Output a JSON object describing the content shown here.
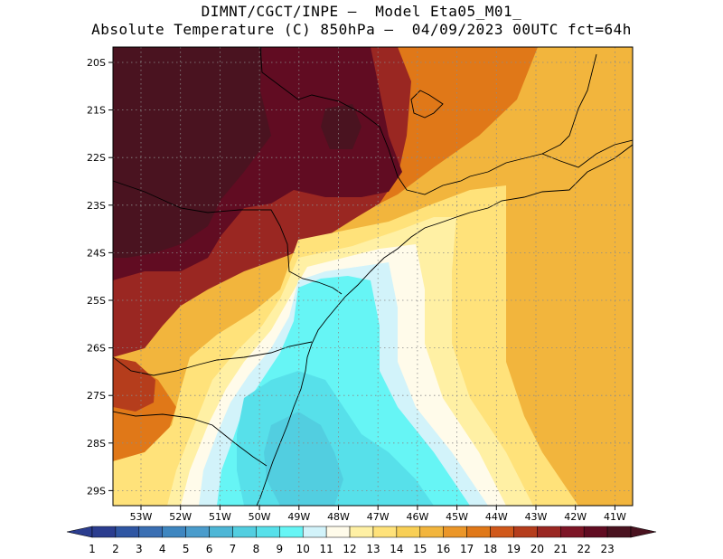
{
  "header": {
    "line1": "DIMNT/CGCT/INPE —  Model Eta05_M01_",
    "line2": "Absolute Temperature (C) 850hPa —  04/09/2023 00UTC fct=64h"
  },
  "axes": {
    "lat_labels": [
      "20S",
      "21S",
      "22S",
      "23S",
      "24S",
      "25S",
      "26S",
      "27S",
      "28S",
      "29S"
    ],
    "lon_labels": [
      "53W",
      "52W",
      "51W",
      "50W",
      "49W",
      "48W",
      "47W",
      "46W",
      "45W",
      "44W",
      "43W",
      "42W",
      "41W"
    ]
  },
  "colorbar": {
    "labels": [
      "1",
      "2",
      "3",
      "4",
      "5",
      "6",
      "7",
      "8",
      "9",
      "10",
      "11",
      "12",
      "13",
      "14",
      "15",
      "16",
      "17",
      "18",
      "19",
      "20",
      "21",
      "22",
      "23"
    ],
    "colors": [
      "#2b3d8f",
      "#2f56a3",
      "#3a6fb3",
      "#3e86c0",
      "#4a9ccc",
      "#4db6d6",
      "#52cee0",
      "#57e0ea",
      "#66f5f5",
      "#d2f3fa",
      "#fffbea",
      "#fff0a4",
      "#ffe27a",
      "#f8cf55",
      "#f2b53d",
      "#eb9628",
      "#e07818",
      "#d0581a",
      "#b53d1c",
      "#9a2722",
      "#7d1526",
      "#610c22",
      "#4a1320"
    ]
  },
  "map": {
    "background_color": "#f2b53d",
    "regions": [
      {
        "name": "warm-corridor",
        "color": "#e07818"
      },
      {
        "name": "north-hot",
        "color": "#9a2722"
      },
      {
        "name": "north-west-hotter",
        "color": "#610c22"
      },
      {
        "name": "north-west-hottest",
        "color": "#4a1320"
      },
      {
        "name": "south-west-orange",
        "color": "#e07818"
      },
      {
        "name": "south-west-red",
        "color": "#b53d1c"
      },
      {
        "name": "coastal-yellow",
        "color": "#ffe27a"
      },
      {
        "name": "pale-band",
        "color": "#fff0a4"
      },
      {
        "name": "cold-white",
        "color": "#fffbea"
      },
      {
        "name": "cold-light",
        "color": "#d2f3fa"
      },
      {
        "name": "cold-cyan",
        "color": "#66f5f5"
      },
      {
        "name": "cold-deep",
        "color": "#57e0ea"
      },
      {
        "name": "cold-core",
        "color": "#52cee0"
      }
    ]
  }
}
